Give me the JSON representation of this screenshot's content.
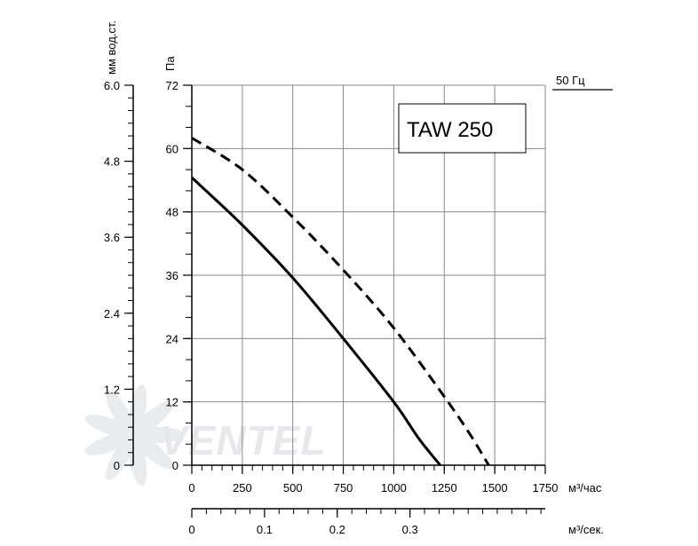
{
  "chart_data": {
    "type": "line",
    "title_box": "TAW 250",
    "frequency_label": "50 Гц",
    "watermark": "VENTEL",
    "x_axis": {
      "unit": "м³/час",
      "ticks": [
        0,
        250,
        500,
        750,
        1000,
        1250,
        1500,
        1750
      ],
      "range": [
        0,
        1750
      ]
    },
    "x2_axis": {
      "unit": "м³/сек.",
      "ticks": [
        0,
        0.1,
        0.2,
        0.3
      ],
      "tick_labels": [
        "0",
        "0.1",
        "0.2",
        "0.3"
      ],
      "range": [
        0,
        0.486
      ]
    },
    "y_axis": {
      "unit": "Па",
      "ticks": [
        0,
        12,
        24,
        36,
        48,
        60,
        72
      ],
      "range": [
        0,
        72
      ]
    },
    "y2_axis": {
      "unit": "мм вод.ст.",
      "ticks": [
        0,
        1.2,
        2.4,
        3.6,
        4.8,
        6.0
      ],
      "tick_labels": [
        "0",
        "1.2",
        "2.4",
        "3.6",
        "4.8",
        "6.0"
      ],
      "range": [
        0,
        6.0
      ]
    },
    "grid": true,
    "series": [
      {
        "style": "solid",
        "points": [
          [
            0,
            54.5
          ],
          [
            250,
            45.5
          ],
          [
            500,
            35.5
          ],
          [
            750,
            24
          ],
          [
            1000,
            12
          ],
          [
            1125,
            5
          ],
          [
            1230,
            0
          ]
        ]
      },
      {
        "style": "dashed",
        "points": [
          [
            0,
            62
          ],
          [
            250,
            56
          ],
          [
            500,
            47
          ],
          [
            750,
            37
          ],
          [
            1000,
            26
          ],
          [
            1250,
            13
          ],
          [
            1375,
            6
          ],
          [
            1470,
            0
          ]
        ]
      }
    ]
  }
}
